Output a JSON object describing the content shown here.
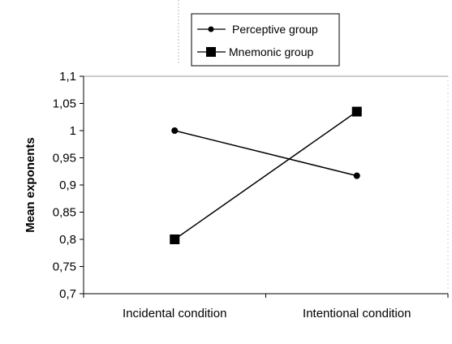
{
  "chart_data": {
    "type": "line",
    "categories": [
      "Incidental condition",
      "Intentional condition"
    ],
    "series": [
      {
        "name": "Perceptive group",
        "values": [
          1.0,
          0.917
        ],
        "marker": "circle",
        "color": "#000000"
      },
      {
        "name": "Mnemonic group",
        "values": [
          0.8,
          1.035
        ],
        "marker": "square",
        "color": "#000000"
      }
    ],
    "ylabel": "Mean exponents",
    "xlabel": "",
    "ylim": [
      0.7,
      1.1
    ],
    "yticks": [
      "0,7",
      "0,75",
      "0,8",
      "0,85",
      "0,9",
      "0,95",
      "1",
      "1,05",
      "1,1"
    ],
    "grid": false,
    "legend_placement": "top-center"
  }
}
